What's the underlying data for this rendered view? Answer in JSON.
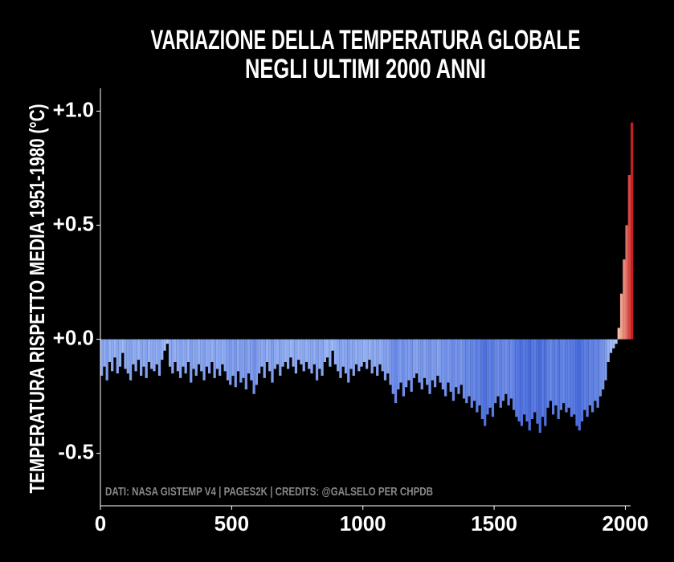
{
  "chart_data": {
    "type": "bar",
    "title": [
      "VARIAZIONE DELLA TEMPERATURA GLOBALE",
      "NEGLI ULTIMI 2000 ANNI"
    ],
    "ylabel": "TEMPERATURA RISPETTO MEDIA 1951-1980 (°C)",
    "annotation": "DATI: NASA GISTEMP V4 | PAGES2K | CREDITS: @GALSELO PER CHPDB",
    "colormap": "coolwarm",
    "xlim": [
      0,
      2020
    ],
    "xticks": [
      0,
      500,
      1000,
      1500,
      2000
    ],
    "ylim": [
      -0.73,
      1.1
    ],
    "yticks": [
      {
        "value": 1.0,
        "label": "+1.0"
      },
      {
        "value": 0.5,
        "label": "+0.5"
      },
      {
        "value": 0,
        "label": "+0.0"
      },
      -0.5
    ],
    "x": [
      0,
      10,
      20,
      30,
      40,
      50,
      60,
      70,
      80,
      90,
      100,
      110,
      120,
      130,
      140,
      150,
      160,
      170,
      180,
      190,
      200,
      210,
      220,
      230,
      240,
      250,
      260,
      270,
      280,
      290,
      300,
      310,
      320,
      330,
      340,
      350,
      360,
      370,
      380,
      390,
      400,
      410,
      420,
      430,
      440,
      450,
      460,
      470,
      480,
      490,
      500,
      510,
      520,
      530,
      540,
      550,
      560,
      570,
      580,
      590,
      600,
      610,
      620,
      630,
      640,
      650,
      660,
      670,
      680,
      690,
      700,
      710,
      720,
      730,
      740,
      750,
      760,
      770,
      780,
      790,
      800,
      810,
      820,
      830,
      840,
      850,
      860,
      870,
      880,
      890,
      900,
      910,
      920,
      930,
      940,
      950,
      960,
      970,
      980,
      990,
      1000,
      1010,
      1020,
      1030,
      1040,
      1050,
      1060,
      1070,
      1080,
      1090,
      1100,
      1110,
      1120,
      1130,
      1140,
      1150,
      1160,
      1170,
      1180,
      1190,
      1200,
      1210,
      1220,
      1230,
      1240,
      1250,
      1260,
      1270,
      1280,
      1290,
      1300,
      1310,
      1320,
      1330,
      1340,
      1350,
      1360,
      1370,
      1380,
      1390,
      1400,
      1410,
      1420,
      1430,
      1440,
      1450,
      1460,
      1470,
      1480,
      1490,
      1500,
      1510,
      1520,
      1530,
      1540,
      1550,
      1560,
      1570,
      1580,
      1590,
      1600,
      1610,
      1620,
      1630,
      1640,
      1650,
      1660,
      1670,
      1680,
      1690,
      1700,
      1710,
      1720,
      1730,
      1740,
      1750,
      1760,
      1770,
      1780,
      1790,
      1800,
      1810,
      1820,
      1830,
      1840,
      1850,
      1860,
      1870,
      1880,
      1890,
      1900,
      1910,
      1920,
      1930,
      1940,
      1950,
      1960,
      1970,
      1980,
      1990,
      2000,
      2010,
      2020
    ],
    "values": [
      -0.16,
      -0.12,
      -0.18,
      -0.1,
      -0.14,
      -0.08,
      -0.15,
      -0.12,
      -0.06,
      -0.13,
      -0.15,
      -0.18,
      -0.11,
      -0.14,
      -0.09,
      -0.16,
      -0.12,
      -0.17,
      -0.1,
      -0.13,
      -0.14,
      -0.11,
      -0.16,
      -0.09,
      -0.05,
      -0.02,
      -0.12,
      -0.15,
      -0.1,
      -0.14,
      -0.17,
      -0.12,
      -0.15,
      -0.1,
      -0.19,
      -0.13,
      -0.16,
      -0.11,
      -0.14,
      -0.18,
      -0.12,
      -0.15,
      -0.1,
      -0.17,
      -0.13,
      -0.16,
      -0.11,
      -0.14,
      -0.18,
      -0.2,
      -0.16,
      -0.21,
      -0.14,
      -0.19,
      -0.17,
      -0.22,
      -0.15,
      -0.18,
      -0.24,
      -0.2,
      -0.15,
      -0.12,
      -0.17,
      -0.1,
      -0.14,
      -0.19,
      -0.13,
      -0.11,
      -0.16,
      -0.12,
      -0.1,
      -0.13,
      -0.08,
      -0.12,
      -0.15,
      -0.09,
      -0.11,
      -0.14,
      -0.1,
      -0.13,
      -0.15,
      -0.11,
      -0.18,
      -0.13,
      -0.16,
      -0.1,
      -0.08,
      -0.12,
      -0.05,
      -0.11,
      -0.14,
      -0.17,
      -0.12,
      -0.15,
      -0.19,
      -0.13,
      -0.16,
      -0.11,
      -0.14,
      -0.12,
      -0.1,
      -0.13,
      -0.09,
      -0.15,
      -0.12,
      -0.16,
      -0.11,
      -0.14,
      -0.18,
      -0.15,
      -0.2,
      -0.24,
      -0.28,
      -0.22,
      -0.19,
      -0.25,
      -0.21,
      -0.18,
      -0.23,
      -0.17,
      -0.15,
      -0.19,
      -0.22,
      -0.17,
      -0.2,
      -0.24,
      -0.18,
      -0.21,
      -0.16,
      -0.19,
      -0.22,
      -0.25,
      -0.19,
      -0.23,
      -0.27,
      -0.21,
      -0.24,
      -0.2,
      -0.26,
      -0.28,
      -0.25,
      -0.3,
      -0.27,
      -0.32,
      -0.29,
      -0.35,
      -0.38,
      -0.33,
      -0.3,
      -0.34,
      -0.28,
      -0.25,
      -0.3,
      -0.27,
      -0.24,
      -0.29,
      -0.26,
      -0.31,
      -0.34,
      -0.36,
      -0.38,
      -0.33,
      -0.36,
      -0.4,
      -0.35,
      -0.32,
      -0.37,
      -0.41,
      -0.34,
      -0.38,
      -0.3,
      -0.27,
      -0.33,
      -0.29,
      -0.35,
      -0.31,
      -0.28,
      -0.32,
      -0.3,
      -0.34,
      -0.33,
      -0.38,
      -0.4,
      -0.36,
      -0.31,
      -0.34,
      -0.29,
      -0.32,
      -0.27,
      -0.3,
      -0.25,
      -0.22,
      -0.18,
      -0.1,
      -0.06,
      -0.04,
      -0.02,
      0.05,
      0.2,
      0.35,
      0.5,
      0.72,
      0.95
    ]
  }
}
